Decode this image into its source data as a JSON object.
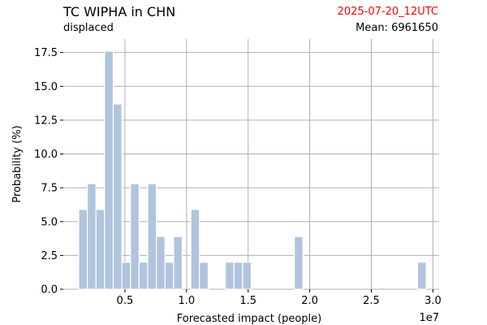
{
  "header": {
    "title": "TC WIPHA in CHN",
    "subtitle": "displaced",
    "date": "2025-07-20_12UTC",
    "mean_label": "Mean:",
    "mean_value": "6961650"
  },
  "colors": {
    "bar": "#b0c4de",
    "grid": "#b0b0b0",
    "date": "#ff0000"
  },
  "chart_data": {
    "type": "bar",
    "xlabel": "Forecasted impact (people)",
    "ylabel": "Probability (%)",
    "x_offset_label": "1e7",
    "xlim": [
      0,
      3.05
    ],
    "ylim": [
      0,
      18.5
    ],
    "xticks": [
      0.5,
      1.0,
      1.5,
      2.0,
      2.5,
      3.0
    ],
    "xtick_labels": [
      "0.5",
      "1.0",
      "1.5",
      "2.0",
      "2.5",
      "3.0"
    ],
    "yticks": [
      0,
      2.5,
      5,
      7.5,
      10,
      12.5,
      15,
      17.5
    ],
    "ytick_labels": [
      "0.0",
      "2.5",
      "5.0",
      "7.5",
      "10.0",
      "12.5",
      "15.0",
      "17.5"
    ],
    "grid": true,
    "bin_width": 0.07,
    "bins": [
      {
        "x": 0.16,
        "value": 5.9
      },
      {
        "x": 0.23,
        "value": 7.8
      },
      {
        "x": 0.3,
        "value": 5.9
      },
      {
        "x": 0.37,
        "value": 17.6
      },
      {
        "x": 0.44,
        "value": 13.7
      },
      {
        "x": 0.51,
        "value": 2.0
      },
      {
        "x": 0.58,
        "value": 7.8
      },
      {
        "x": 0.65,
        "value": 2.0
      },
      {
        "x": 0.72,
        "value": 7.8
      },
      {
        "x": 0.79,
        "value": 3.9
      },
      {
        "x": 0.86,
        "value": 2.0
      },
      {
        "x": 0.93,
        "value": 3.9
      },
      {
        "x": 1.07,
        "value": 5.9
      },
      {
        "x": 1.14,
        "value": 2.0
      },
      {
        "x": 1.35,
        "value": 2.0
      },
      {
        "x": 1.42,
        "value": 2.0
      },
      {
        "x": 1.49,
        "value": 2.0
      },
      {
        "x": 1.91,
        "value": 3.9
      },
      {
        "x": 2.91,
        "value": 2.0
      }
    ]
  }
}
